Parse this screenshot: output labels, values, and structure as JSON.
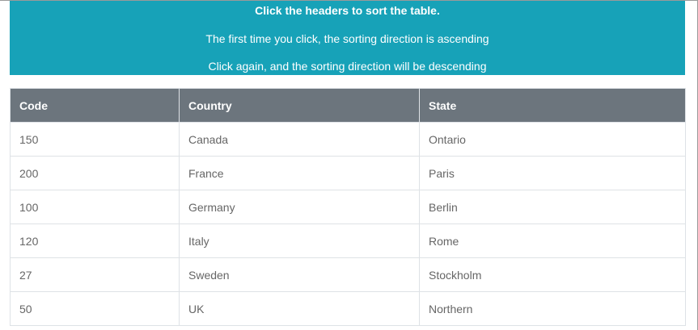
{
  "banner": {
    "title": "Click the headers to sort the table.",
    "line2": "The first time you click, the sorting direction is ascending",
    "line3": "Click again, and the sorting direction will be descending"
  },
  "table": {
    "headers": [
      "Code",
      "Country",
      "State"
    ],
    "rows": [
      [
        "150",
        "Canada",
        "Ontario"
      ],
      [
        "200",
        "France",
        "Paris"
      ],
      [
        "100",
        "Germany",
        "Berlin"
      ],
      [
        "120",
        "Italy",
        "Rome"
      ],
      [
        "27",
        "Sweden",
        "Stockholm"
      ],
      [
        "50",
        "UK",
        "Northern"
      ]
    ]
  },
  "colors": {
    "banner_bg": "#17a2b8",
    "header_bg": "#6c757d",
    "cell_text": "#666666",
    "border": "#dee2e6"
  }
}
